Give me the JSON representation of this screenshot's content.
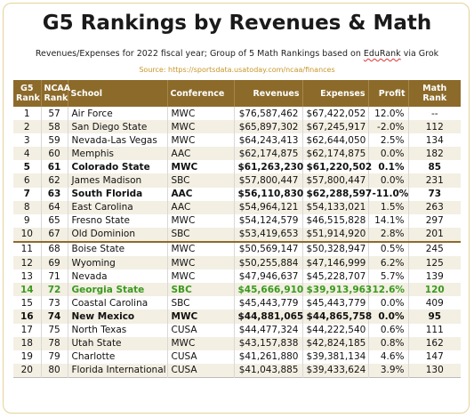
{
  "title": "G5 Rankings by Revenues & Math",
  "subtitle_pre": "Revenues/Expenses for 2022 fiscal year; Group of 5 Math Rankings based on ",
  "subtitle_src": "EduRank",
  "subtitle_post": " via Grok",
  "source": "Source: https://sportsdata.usatoday.com/ncaa/finances",
  "headers": {
    "g5": [
      "G5",
      "Rank"
    ],
    "ncaa": [
      "NCAA",
      "Rank"
    ],
    "school": "School",
    "conference": "Conference",
    "revenues": "Revenues",
    "expenses": "Expenses",
    "profit": "Profit",
    "math": "Math Rank"
  },
  "rows": [
    {
      "g5": "1",
      "ncaa": "57",
      "school": "Air Force",
      "conf": "MWC",
      "rev": "$76,587,462",
      "exp": "$67,422,052",
      "profit": "12.0%",
      "math": "--",
      "style": ""
    },
    {
      "g5": "2",
      "ncaa": "58",
      "school": "San Diego State",
      "conf": "MWC",
      "rev": "$65,897,302",
      "exp": "$67,245,917",
      "profit": "-2.0%",
      "math": "112",
      "style": ""
    },
    {
      "g5": "3",
      "ncaa": "59",
      "school": "Nevada-Las Vegas",
      "conf": "MWC",
      "rev": "$64,243,413",
      "exp": "$62,644,050",
      "profit": "2.5%",
      "math": "134",
      "style": ""
    },
    {
      "g5": "4",
      "ncaa": "60",
      "school": "Memphis",
      "conf": "AAC",
      "rev": "$62,174,875",
      "exp": "$62,174,875",
      "profit": "0.0%",
      "math": "182",
      "style": ""
    },
    {
      "g5": "5",
      "ncaa": "61",
      "school": "Colorado State",
      "conf": "MWC",
      "rev": "$61,263,230",
      "exp": "$61,220,502",
      "profit": "0.1%",
      "math": "85",
      "style": "bold"
    },
    {
      "g5": "6",
      "ncaa": "62",
      "school": "James Madison",
      "conf": "SBC",
      "rev": "$57,800,447",
      "exp": "$57,800,447",
      "profit": "0.0%",
      "math": "231",
      "style": ""
    },
    {
      "g5": "7",
      "ncaa": "63",
      "school": "South Florida",
      "conf": "AAC",
      "rev": "$56,110,830",
      "exp": "$62,288,597",
      "profit": "-11.0%",
      "math": "73",
      "style": "bold"
    },
    {
      "g5": "8",
      "ncaa": "64",
      "school": "East Carolina",
      "conf": "AAC",
      "rev": "$54,964,121",
      "exp": "$54,133,021",
      "profit": "1.5%",
      "math": "263",
      "style": ""
    },
    {
      "g5": "9",
      "ncaa": "65",
      "school": "Fresno State",
      "conf": "MWC",
      "rev": "$54,124,579",
      "exp": "$46,515,828",
      "profit": "14.1%",
      "math": "297",
      "style": ""
    },
    {
      "g5": "10",
      "ncaa": "67",
      "school": "Old Dominion",
      "conf": "SBC",
      "rev": "$53,419,653",
      "exp": "$51,914,920",
      "profit": "2.8%",
      "math": "201",
      "style": ""
    },
    {
      "g5": "11",
      "ncaa": "68",
      "school": "Boise State",
      "conf": "MWC",
      "rev": "$50,569,147",
      "exp": "$50,328,947",
      "profit": "0.5%",
      "math": "245",
      "style": ""
    },
    {
      "g5": "12",
      "ncaa": "69",
      "school": "Wyoming",
      "conf": "MWC",
      "rev": "$50,255,884",
      "exp": "$47,146,999",
      "profit": "6.2%",
      "math": "125",
      "style": ""
    },
    {
      "g5": "13",
      "ncaa": "71",
      "school": "Nevada",
      "conf": "MWC",
      "rev": "$47,946,637",
      "exp": "$45,228,707",
      "profit": "5.7%",
      "math": "139",
      "style": ""
    },
    {
      "g5": "14",
      "ncaa": "72",
      "school": "Georgia State",
      "conf": "SBC",
      "rev": "$45,666,910",
      "exp": "$39,913,963",
      "profit": "12.6%",
      "math": "120",
      "style": "green"
    },
    {
      "g5": "15",
      "ncaa": "73",
      "school": "Coastal Carolina",
      "conf": "SBC",
      "rev": "$45,443,779",
      "exp": "$45,443,779",
      "profit": "0.0%",
      "math": "409",
      "style": ""
    },
    {
      "g5": "16",
      "ncaa": "74",
      "school": "New Mexico",
      "conf": "MWC",
      "rev": "$44,881,065",
      "exp": "$44,865,758",
      "profit": "0.0%",
      "math": "95",
      "style": "bold"
    },
    {
      "g5": "17",
      "ncaa": "75",
      "school": "North Texas",
      "conf": "CUSA",
      "rev": "$44,477,324",
      "exp": "$44,222,540",
      "profit": "0.6%",
      "math": "111",
      "style": ""
    },
    {
      "g5": "18",
      "ncaa": "78",
      "school": "Utah State",
      "conf": "MWC",
      "rev": "$43,157,838",
      "exp": "$42,824,185",
      "profit": "0.8%",
      "math": "162",
      "style": ""
    },
    {
      "g5": "19",
      "ncaa": "79",
      "school": "Charlotte",
      "conf": "CUSA",
      "rev": "$41,261,880",
      "exp": "$39,381,134",
      "profit": "4.6%",
      "math": "147",
      "style": ""
    },
    {
      "g5": "20",
      "ncaa": "80",
      "school": "Florida International",
      "conf": "CUSA",
      "rev": "$41,043,885",
      "exp": "$39,433,624",
      "profit": "3.9%",
      "math": "130",
      "style": ""
    }
  ]
}
